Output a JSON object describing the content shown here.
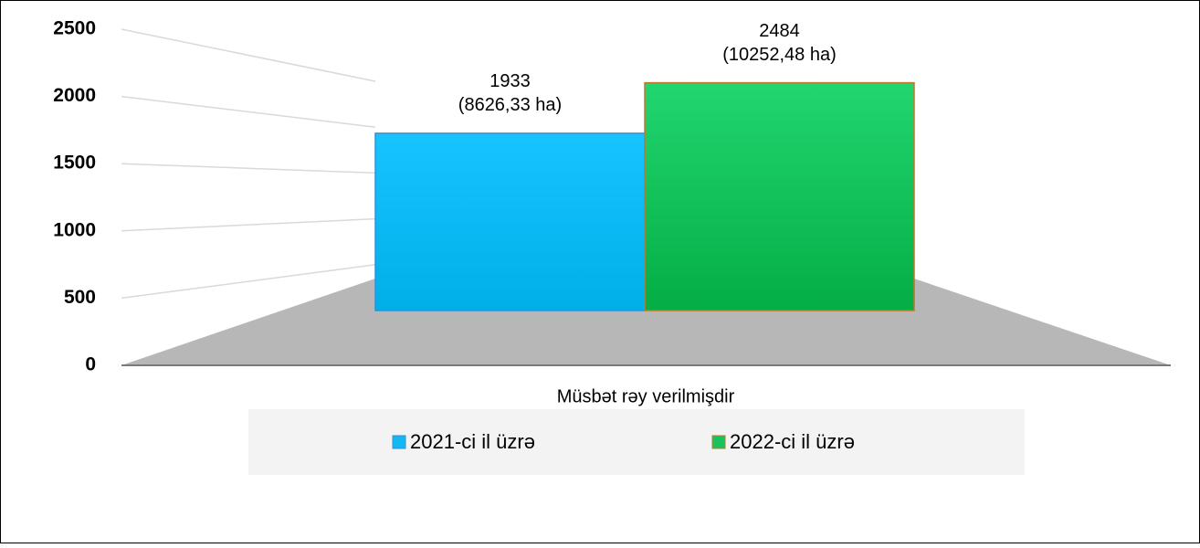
{
  "chart_data": {
    "type": "bar",
    "categories": [
      "Müsbət rəy verilmişdir"
    ],
    "series": [
      {
        "name": "2021-ci il üzrə",
        "color": "#12b8f2",
        "values": [
          1933
        ],
        "value_labels": [
          [
            "1933",
            "(8626,33 ha)"
          ]
        ]
      },
      {
        "name": "2022-ci il üzrə",
        "color": "#17c35f",
        "values": [
          2484
        ],
        "value_labels": [
          [
            "2484",
            "(10252,48 ha)"
          ]
        ]
      }
    ],
    "ylim": [
      0,
      2500
    ],
    "yticks": [
      0,
      500,
      1000,
      1500,
      2000,
      2500
    ],
    "grid": true,
    "legend": "bottom"
  }
}
